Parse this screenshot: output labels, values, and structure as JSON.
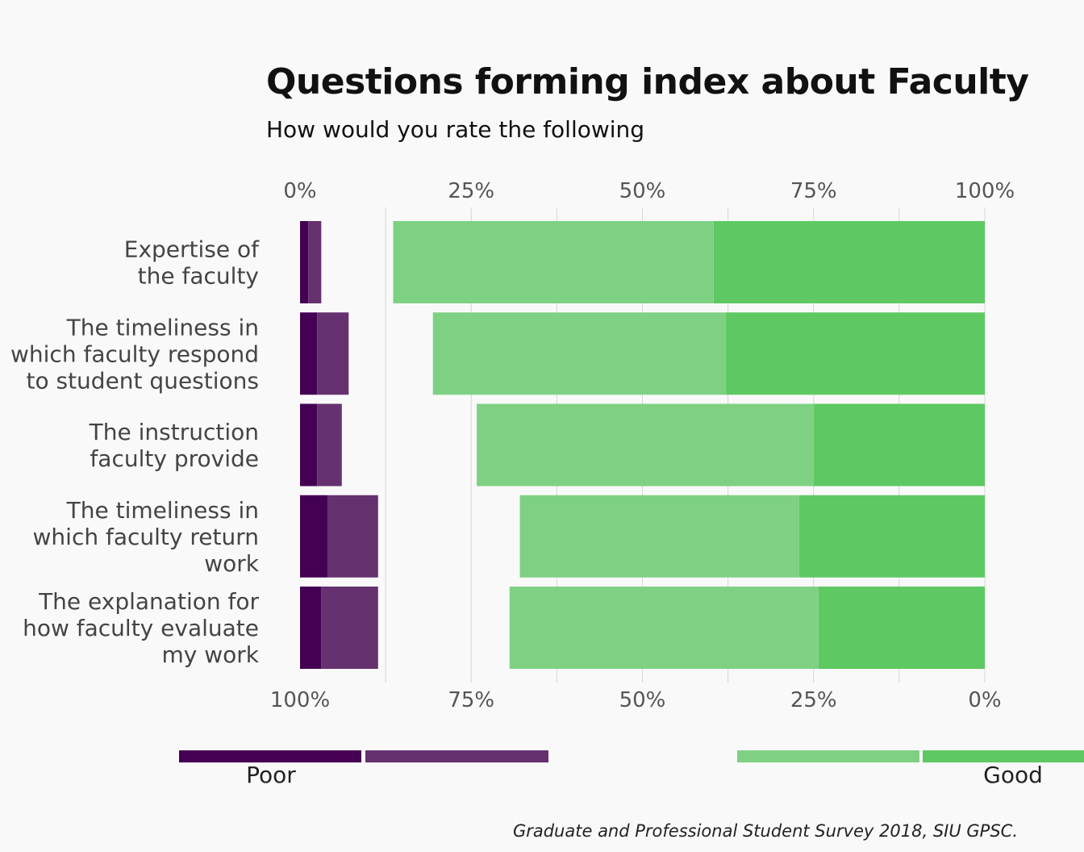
{
  "chart_data": {
    "type": "bar",
    "title": "Questions forming index about Faculty",
    "subtitle": "How would you rate the following",
    "caption": "Graduate and Professional Student Survey 2018, SIU GPSC.",
    "top_ticks": [
      "0%",
      "25%",
      "50%",
      "75%",
      "100%"
    ],
    "bottom_ticks": [
      "100%",
      "75%",
      "50%",
      "25%",
      "0%"
    ],
    "categories": [
      [
        "Expertise of",
        "the faculty"
      ],
      [
        "The timeliness in",
        "which faculty respond",
        "to student questions"
      ],
      [
        "The instruction",
        "faculty provide"
      ],
      [
        "The timeliness in",
        "which faculty return",
        "work"
      ],
      [
        "The explanation for",
        "how  faculty evaluate",
        "my work"
      ]
    ],
    "series": [
      {
        "legend": "Poor",
        "color": "#440154",
        "side": "left",
        "values": [
          1.2,
          2.5,
          2.5,
          4.0,
          3.1
        ]
      },
      {
        "legend": "",
        "color": "#65316f",
        "side": "left",
        "values": [
          1.9,
          4.6,
          3.6,
          7.4,
          8.3
        ]
      },
      {
        "legend": "",
        "color": "#7ed183",
        "side": "right",
        "values": [
          46.8,
          42.8,
          49.2,
          40.8,
          45.1
        ]
      },
      {
        "legend": "Good",
        "color": "#5ec962",
        "side": "right",
        "values": [
          39.6,
          37.8,
          25.0,
          27.1,
          24.3
        ]
      }
    ],
    "xlim": [
      0,
      100
    ],
    "grid": true,
    "legend_position": "bottom"
  }
}
